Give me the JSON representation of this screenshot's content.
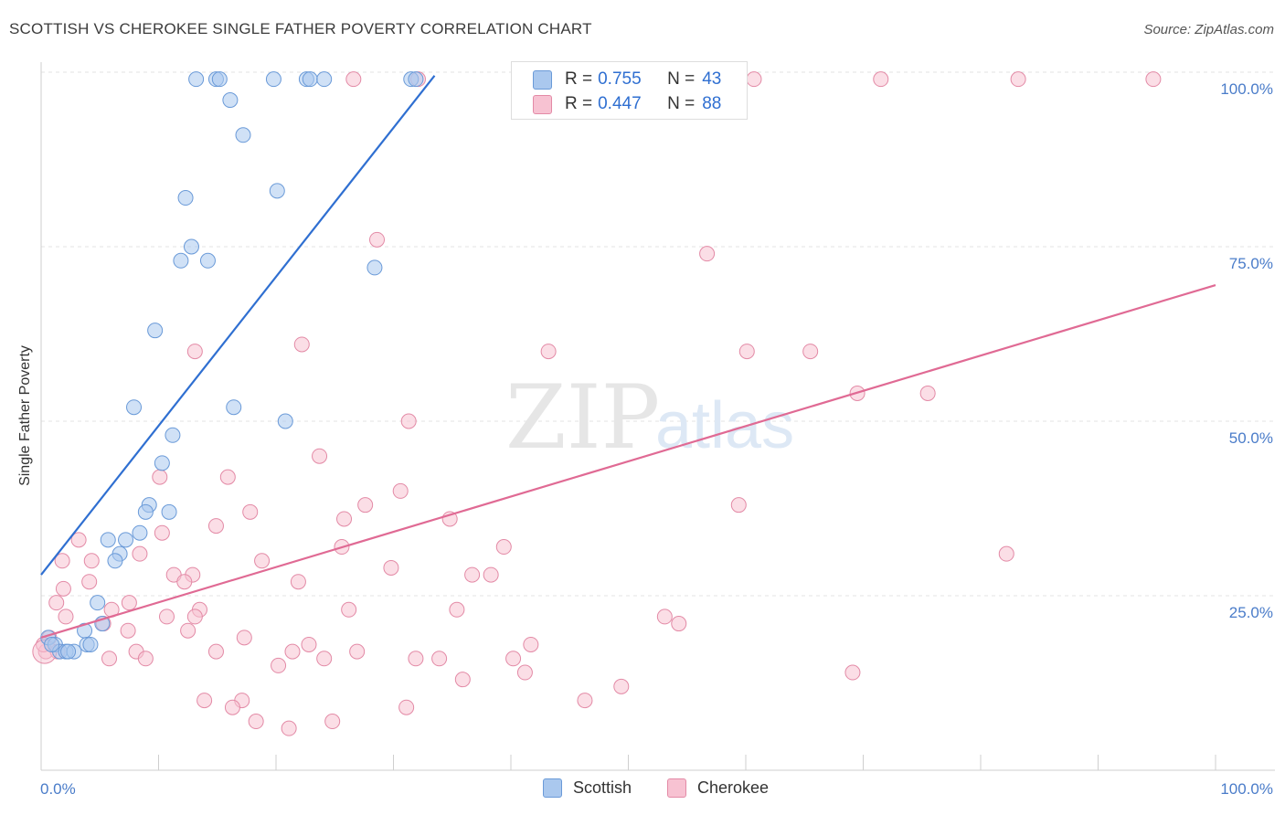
{
  "title": "SCOTTISH VS CHEROKEE SINGLE FATHER POVERTY CORRELATION CHART",
  "source": "Source: ZipAtlas.com",
  "watermark": {
    "zip": "ZIP",
    "atlas": "atlas"
  },
  "legend_top": {
    "rows": [
      {
        "r_label": "R =",
        "r_value": "0.755",
        "n_label": "N =",
        "n_value": "43",
        "color": "#aac8ee",
        "border": "#6a9ad8"
      },
      {
        "r_label": "R =",
        "r_value": "0.447",
        "n_label": "N =",
        "n_value": "88",
        "color": "#f7c2d2",
        "border": "#e38aa6"
      }
    ]
  },
  "legend_bottom": [
    {
      "label": "Scottish",
      "color": "#aac8ee",
      "border": "#6a9ad8"
    },
    {
      "label": "Cherokee",
      "color": "#f7c2d2",
      "border": "#e38aa6"
    }
  ],
  "chart_data": {
    "type": "scatter",
    "title": "SCOTTISH VS CHEROKEE SINGLE FATHER POVERTY CORRELATION CHART",
    "xlabel": "",
    "ylabel": "Single Father Poverty",
    "xlim": [
      0,
      100
    ],
    "ylim": [
      0,
      100
    ],
    "x_tick_labels": [
      "0.0%",
      "100.0%"
    ],
    "y_ticks": [
      {
        "value": 100,
        "label": "100.0%"
      },
      {
        "value": 75,
        "label": "75.0%"
      },
      {
        "value": 50,
        "label": "50.0%"
      },
      {
        "value": 25,
        "label": "25.0%"
      }
    ],
    "series": [
      {
        "name": "Scottish",
        "color": "#aac8ee",
        "stroke": "#6a9ad8",
        "line_color": "#2f6fd1",
        "trendline": {
          "x": [
            0,
            33.5
          ],
          "y": [
            28,
            99.5
          ]
        },
        "points": [
          [
            13.2,
            99
          ],
          [
            14.9,
            99
          ],
          [
            15.2,
            99
          ],
          [
            19.8,
            99
          ],
          [
            22.6,
            99
          ],
          [
            22.9,
            99
          ],
          [
            24.1,
            99
          ],
          [
            31.5,
            99
          ],
          [
            31.9,
            99
          ],
          [
            16.1,
            96
          ],
          [
            17.2,
            91
          ],
          [
            20.1,
            83
          ],
          [
            12.3,
            82
          ],
          [
            12.8,
            75
          ],
          [
            11.9,
            73
          ],
          [
            14.2,
            73
          ],
          [
            28.4,
            72
          ],
          [
            9.7,
            63
          ],
          [
            7.9,
            52
          ],
          [
            16.4,
            52
          ],
          [
            20.8,
            50
          ],
          [
            11.2,
            48
          ],
          [
            10.3,
            44
          ],
          [
            9.2,
            38
          ],
          [
            10.9,
            37
          ],
          [
            8.9,
            37
          ],
          [
            8.4,
            34
          ],
          [
            7.2,
            33
          ],
          [
            5.7,
            33
          ],
          [
            6.7,
            31
          ],
          [
            6.3,
            30
          ],
          [
            4.8,
            24
          ],
          [
            5.2,
            21
          ],
          [
            3.7,
            20
          ],
          [
            3.9,
            18
          ],
          [
            4.2,
            18
          ],
          [
            0.6,
            19
          ],
          [
            1.2,
            18
          ],
          [
            1.6,
            17
          ],
          [
            2.1,
            17
          ],
          [
            2.8,
            17
          ],
          [
            2.3,
            17
          ],
          [
            0.9,
            18
          ]
        ]
      },
      {
        "name": "Cherokee",
        "color": "#f7c2d2",
        "stroke": "#e38aa6",
        "line_color": "#e06a94",
        "trendline": {
          "x": [
            0,
            100
          ],
          "y": [
            19,
            69.5
          ]
        },
        "points": [
          [
            26.6,
            99
          ],
          [
            32.1,
            99
          ],
          [
            60.7,
            99
          ],
          [
            71.5,
            99
          ],
          [
            83.2,
            99
          ],
          [
            94.7,
            99
          ],
          [
            28.6,
            76
          ],
          [
            56.7,
            74
          ],
          [
            22.2,
            61
          ],
          [
            13.1,
            60
          ],
          [
            43.2,
            60
          ],
          [
            60.1,
            60
          ],
          [
            65.5,
            60
          ],
          [
            69.5,
            54
          ],
          [
            75.5,
            54
          ],
          [
            31.3,
            50
          ],
          [
            23.7,
            45
          ],
          [
            15.9,
            42
          ],
          [
            10.1,
            42
          ],
          [
            30.6,
            40
          ],
          [
            27.6,
            38
          ],
          [
            59.4,
            38
          ],
          [
            17.8,
            37
          ],
          [
            25.8,
            36
          ],
          [
            14.9,
            35
          ],
          [
            34.8,
            36
          ],
          [
            10.3,
            34
          ],
          [
            3.2,
            33
          ],
          [
            25.6,
            32
          ],
          [
            39.4,
            32
          ],
          [
            82.2,
            31
          ],
          [
            8.4,
            31
          ],
          [
            4.3,
            30
          ],
          [
            1.8,
            30
          ],
          [
            18.8,
            30
          ],
          [
            29.8,
            29
          ],
          [
            11.3,
            28
          ],
          [
            36.7,
            28
          ],
          [
            12.9,
            28
          ],
          [
            12.2,
            27
          ],
          [
            38.3,
            28
          ],
          [
            4.1,
            27
          ],
          [
            21.9,
            27
          ],
          [
            1.9,
            26
          ],
          [
            7.5,
            24
          ],
          [
            1.3,
            24
          ],
          [
            6.0,
            23
          ],
          [
            13.5,
            23
          ],
          [
            2.1,
            22
          ],
          [
            26.2,
            23
          ],
          [
            35.4,
            23
          ],
          [
            53.1,
            22
          ],
          [
            10.7,
            22
          ],
          [
            13.1,
            22
          ],
          [
            5.3,
            21
          ],
          [
            7.4,
            20
          ],
          [
            12.5,
            20
          ],
          [
            54.3,
            21
          ],
          [
            17.3,
            19
          ],
          [
            22.8,
            18
          ],
          [
            41.7,
            18
          ],
          [
            8.1,
            17
          ],
          [
            14.9,
            17
          ],
          [
            21.4,
            17
          ],
          [
            26.9,
            17
          ],
          [
            24.1,
            16
          ],
          [
            40.2,
            16
          ],
          [
            5.8,
            16
          ],
          [
            8.9,
            16
          ],
          [
            31.9,
            16
          ],
          [
            33.9,
            16
          ],
          [
            20.2,
            15
          ],
          [
            41.2,
            14
          ],
          [
            69.1,
            14
          ],
          [
            35.9,
            13
          ],
          [
            49.4,
            12
          ],
          [
            17.1,
            10
          ],
          [
            46.3,
            10
          ],
          [
            13.9,
            10
          ],
          [
            16.3,
            9
          ],
          [
            31.1,
            9
          ],
          [
            18.3,
            7
          ],
          [
            24.8,
            7
          ],
          [
            21.1,
            6
          ],
          [
            0.4,
            17
          ],
          [
            0.7,
            19
          ],
          [
            0.2,
            18
          ],
          [
            1.4,
            17
          ]
        ]
      }
    ]
  }
}
